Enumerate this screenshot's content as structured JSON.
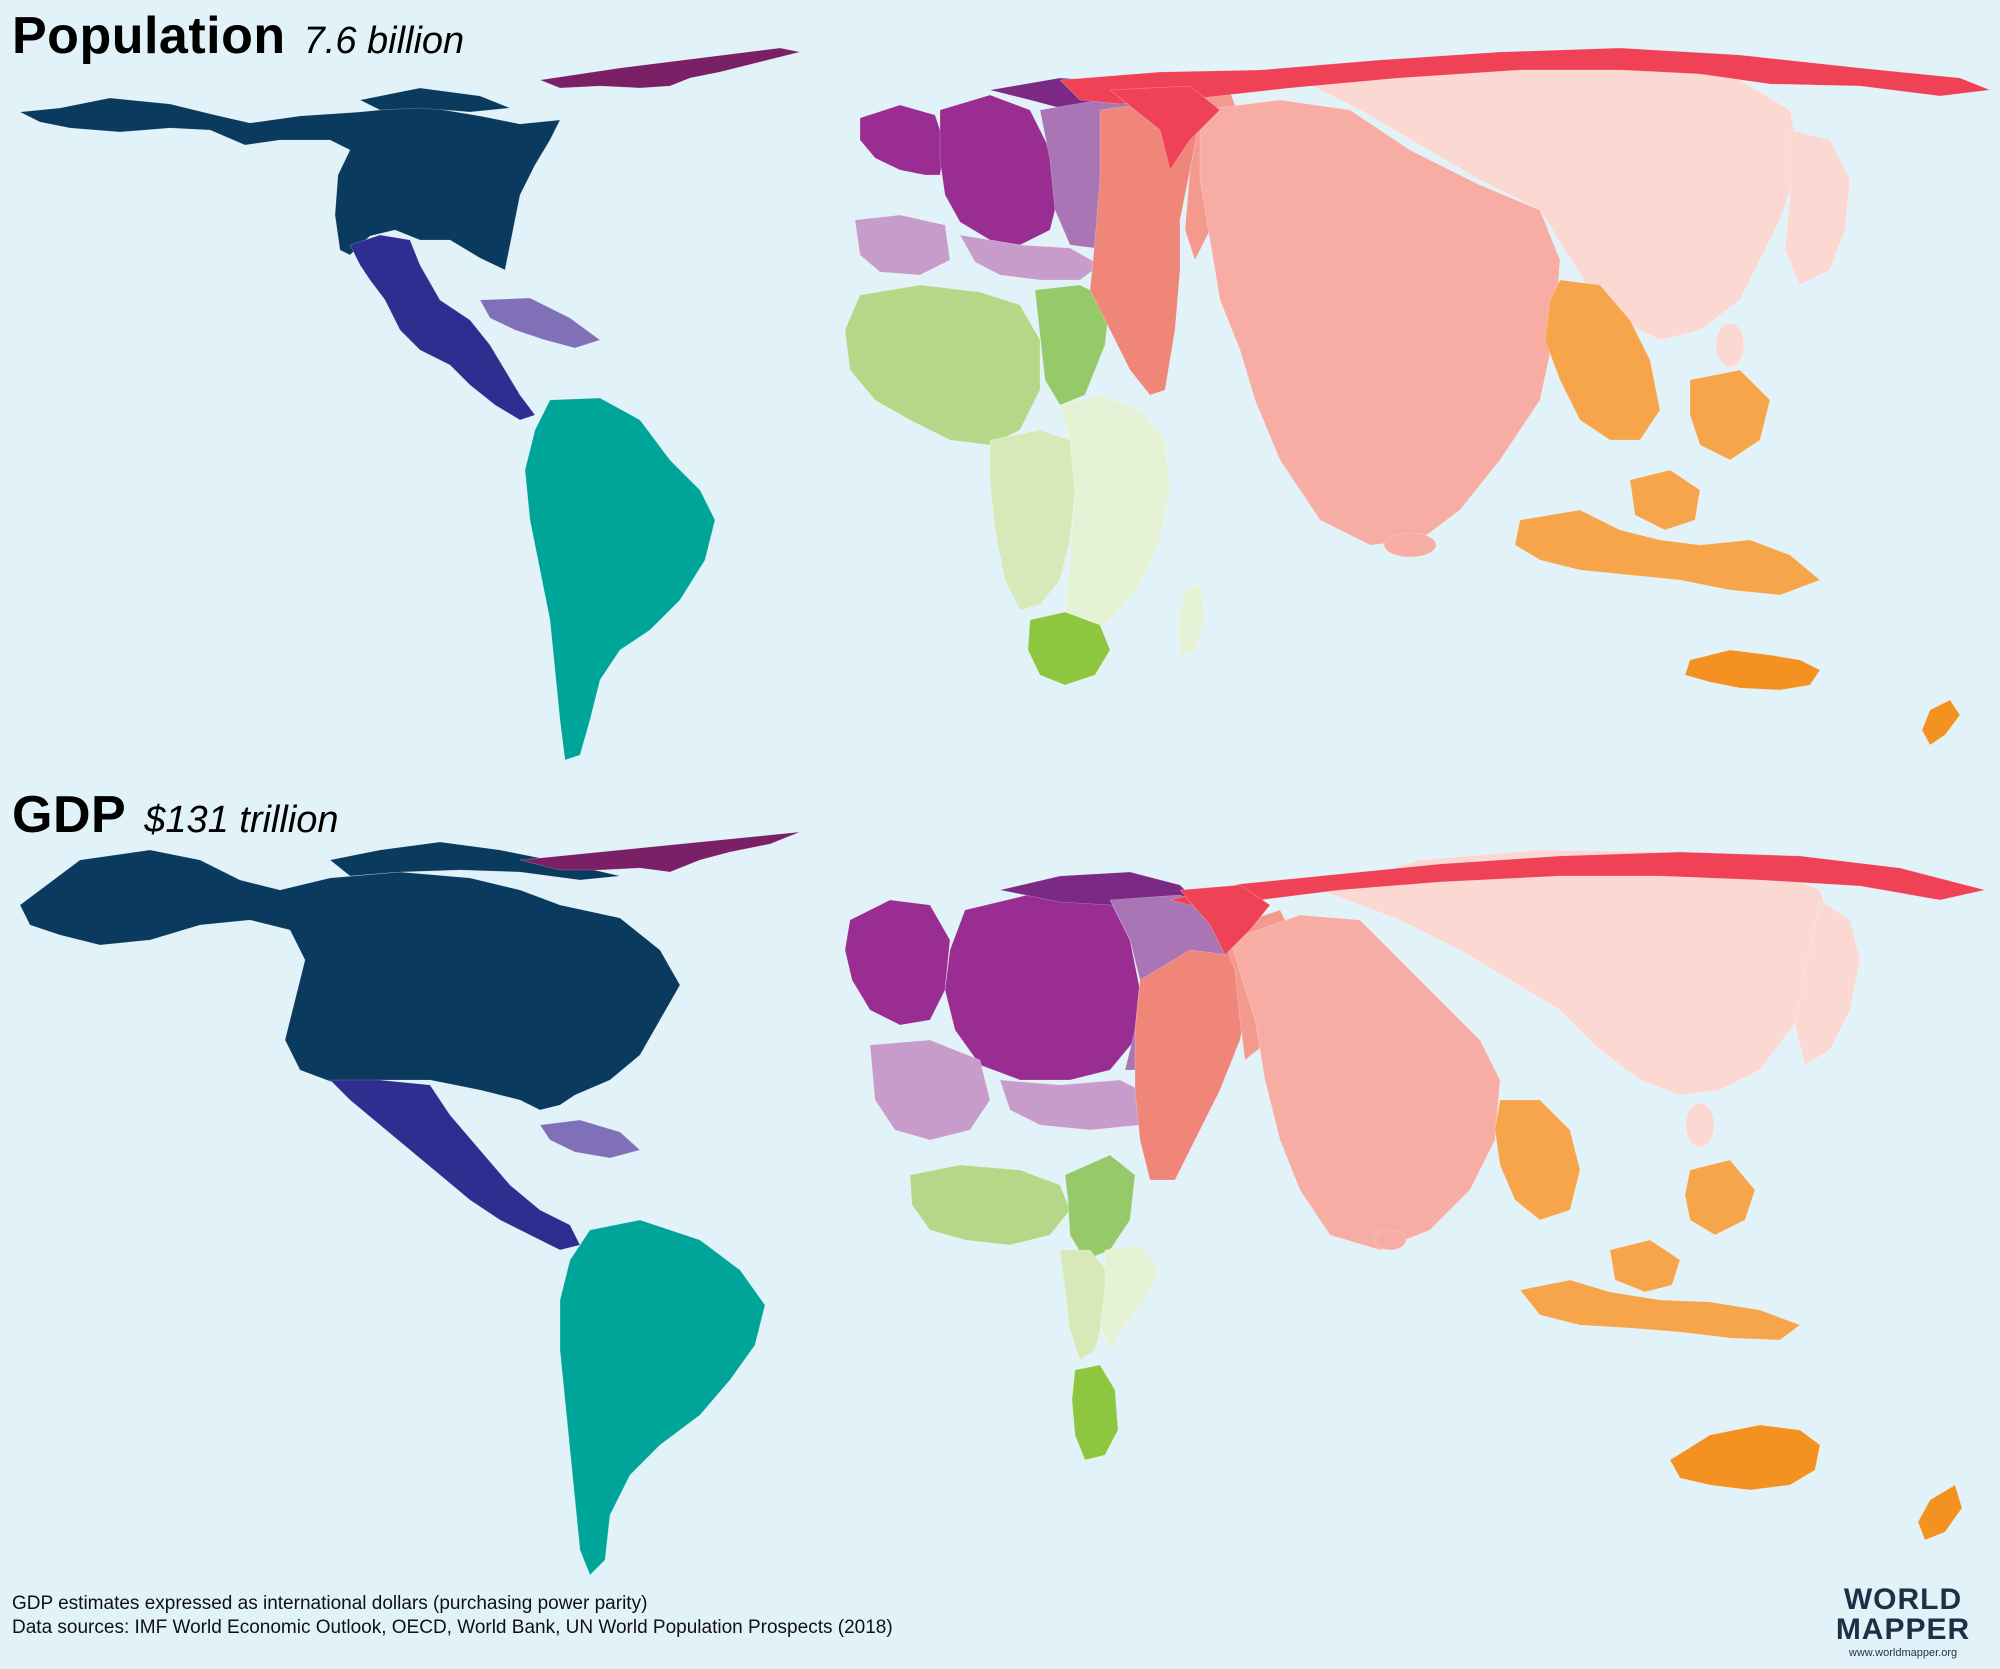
{
  "maps": [
    {
      "title": "Population",
      "value": "7.6 billion",
      "regions": [
        {
          "name": "North America",
          "color": "#0a3a5e"
        },
        {
          "name": "Central America",
          "color": "#2f2d8f"
        },
        {
          "name": "Caribbean",
          "color": "#7f70b8"
        },
        {
          "name": "South America",
          "color": "#00a59a"
        },
        {
          "name": "Western Europe",
          "color": "#9a2d91"
        },
        {
          "name": "Eastern Europe",
          "color": "#a975b5"
        },
        {
          "name": "Southern Europe",
          "color": "#c79ccb"
        },
        {
          "name": "Northern Africa",
          "color": "#b5d888"
        },
        {
          "name": "Central Africa",
          "color": "#d7e9b8"
        },
        {
          "name": "Eastern Africa",
          "color": "#e6f2d6"
        },
        {
          "name": "Southern Africa",
          "color": "#8dc63f"
        },
        {
          "name": "Middle East",
          "color": "#f0857a"
        },
        {
          "name": "Southern Asia",
          "color": "#f8ada4"
        },
        {
          "name": "Eastern Asia",
          "color": "#fcd8d2"
        },
        {
          "name": "Russia",
          "color": "#ef4257"
        },
        {
          "name": "South-East Asia",
          "color": "#f6a54a"
        },
        {
          "name": "Oceania",
          "color": "#f39221"
        }
      ]
    },
    {
      "title": "GDP",
      "value": "$131 trillion"
    }
  ],
  "footer": {
    "gdp_note": "GDP estimates expressed as international dollars (purchasing power parity)",
    "sources": "Data sources: IMF World Economic Outlook, OECD, World Bank, UN World Population Prospects (2018)"
  },
  "logo": {
    "line1": "WORLD",
    "line2": "MAPPER",
    "url": "www.worldmapper.org"
  }
}
